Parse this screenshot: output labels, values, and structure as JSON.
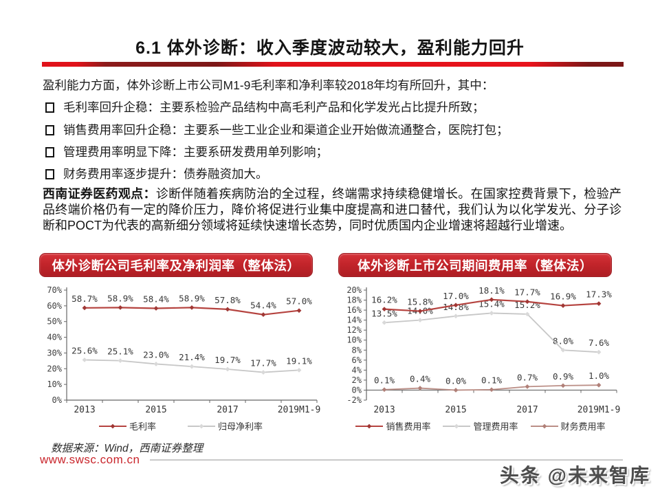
{
  "page": {
    "title": "6.1 体外诊断：收入季度波动较大，盈利能力回升",
    "intro": "盈利能力方面，体外诊断上市公司M1-9毛利率和净利率较2018年均有所回升，其中：",
    "bullets": [
      "毛利率回升企稳：主要系检验产品结构中高毛利产品和化学发光占比提升所致；",
      "销售费用率回升企稳：主要系一些工业企业和渠道企业开始做流通整合，医院打包；",
      "管理费用率明显下降：主要系研发费用单列影响；",
      "财务费用率逐步提升：债券融资加大。"
    ],
    "viewpoint_label": "西南证券医药观点：",
    "viewpoint_text": "诊断伴随着疾病防治的全过程，终端需求持续稳健增长。在国家控费背景下，检验产品终端价格仍有一定的降价压力，降价将促进行业集中度提高和进口替代，我们认为以化学发光、分子诊断和POCT为代表的高新细分领域将延续快速增长态势，同时优质国内企业增速将超越行业增速。",
    "source": "数据来源：Wind，西南证券整理",
    "website": "www.swsc.com.cn",
    "watermark": "头条 @未来智库"
  },
  "colors": {
    "accent_red": "#c3252b",
    "maroon": "#7c1717",
    "link_red": "#c9252b",
    "line_red": "#b5433f",
    "line_gray": "#c7c7c7",
    "line_rose": "#bb8e86",
    "axis_gray": "#666666"
  },
  "chart_data": [
    {
      "type": "line",
      "title": "体外诊断公司毛利率及净利润率（整体法）",
      "categories": [
        "2013",
        "2014",
        "2015",
        "2016",
        "2017",
        "2018",
        "2019M1-9"
      ],
      "x_tick_labels": [
        "2013",
        "",
        "2015",
        "",
        "2017",
        "",
        "2019M1-9"
      ],
      "ylim": [
        0,
        70
      ],
      "ytick_step": 10,
      "grid": false,
      "legend_position": "bottom",
      "series": [
        {
          "name": "毛利率",
          "color": "#b5433f",
          "marker": "#a03734",
          "width": 2.2,
          "values": [
            58.7,
            58.9,
            58.4,
            58.9,
            57.8,
            54.4,
            57.0
          ]
        },
        {
          "name": "归母净利率",
          "color": "#c7c7c7",
          "marker": "#d9d9d9",
          "width": 1.8,
          "values": [
            25.6,
            25.1,
            23.0,
            21.4,
            19.7,
            17.7,
            19.1
          ]
        }
      ]
    },
    {
      "type": "line",
      "title": "体外诊断上市公司期间费用率（整体法）",
      "categories": [
        "2013",
        "2014",
        "2015",
        "2016",
        "2017",
        "2018",
        "2019M1-9"
      ],
      "x_tick_labels": [
        "2013",
        "",
        "2015",
        "",
        "2017",
        "",
        "2019M1-9"
      ],
      "ylim": [
        -2,
        20
      ],
      "ytick_step": 2,
      "grid": false,
      "legend_position": "bottom",
      "series": [
        {
          "name": "销售费用率",
          "color": "#b5433f",
          "marker": "#a03734",
          "width": 2.2,
          "values": [
            16.2,
            15.8,
            17.0,
            18.1,
            17.7,
            16.9,
            17.3
          ]
        },
        {
          "name": "管理费用率",
          "color": "#c7c7c7",
          "marker": "#d9d9d9",
          "width": 1.8,
          "values": [
            13.5,
            14.0,
            14.8,
            15.4,
            15.2,
            8.0,
            7.6
          ]
        },
        {
          "name": "财务费用率",
          "color": "#bb8e86",
          "marker": "#b08078",
          "width": 1.8,
          "values": [
            0.1,
            0.4,
            0.0,
            0.1,
            0.7,
            0.9,
            1.0
          ]
        }
      ]
    }
  ]
}
